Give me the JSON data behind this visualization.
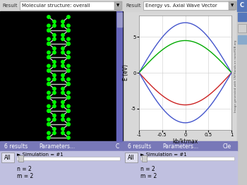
{
  "bg_color": "#c8c8c8",
  "left_panel_bg": "#000000",
  "top_bar_bg": "#d8d8d8",
  "bottom_bar_bg": "#7878b8",
  "bottom_sub_bg": "#c0c0e0",
  "xlabel": "kb/ktmax",
  "ylabel": "E (eV)",
  "xlim": [
    -1,
    1
  ],
  "ylim": [
    -8,
    8
  ],
  "yticks": [
    -5,
    0,
    5
  ],
  "xticks": [
    -1,
    -0.5,
    0,
    0.5,
    1
  ],
  "band_blue_amp": 7.0,
  "band_green_amp": 4.5,
  "band_red_amp": 4.5,
  "n_label": "n = 2",
  "m_label": "m = 2",
  "sim_label": "► Simulation = #1",
  "results_label": "6 results",
  "params_label": "Parameters...",
  "all_label": "All",
  "clear_label": "Cle",
  "scrollbar_color": "#6666bb",
  "scrollbar_thumb": "#9999cc",
  "right_sidebar_bg": "#c8c8c8",
  "top_bar_text_color": "#333333",
  "bond_color": "#c8c8c8",
  "atom_color": "#00ff00"
}
